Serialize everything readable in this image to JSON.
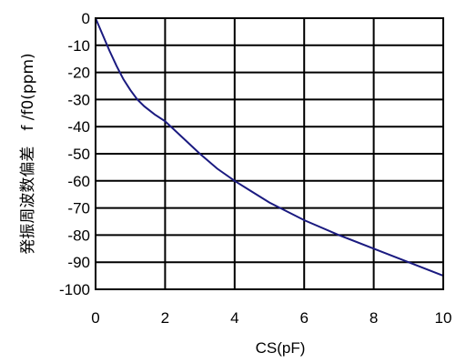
{
  "chart_data": {
    "type": "line",
    "xlabel": "CS(pF)",
    "ylabel": "発振周波数偏差　f /f0(ppm)",
    "xlim": [
      0,
      10
    ],
    "ylim": [
      -100,
      0
    ],
    "xticks": [
      0,
      2,
      4,
      6,
      8,
      10
    ],
    "yticks": [
      0,
      -10,
      -20,
      -30,
      -40,
      -50,
      -60,
      -70,
      -80,
      -90,
      -100
    ],
    "xtick_labels": [
      "0",
      "2",
      "4",
      "6",
      "8",
      "10"
    ],
    "ytick_labels": [
      "0",
      "-10",
      "-20",
      "-30",
      "-40",
      "-50",
      "-60",
      "-70",
      "-80",
      "-90",
      "-100"
    ],
    "grid": true,
    "line_color": "#1a1a80",
    "series": [
      {
        "x": [
          0,
          0.2,
          0.4,
          0.6,
          0.8,
          1.0,
          1.2,
          1.4,
          1.7,
          2.0,
          2.5,
          3.0,
          3.5,
          4.0,
          4.5,
          5.0,
          6.0,
          7.0,
          8.0,
          9.0,
          10.0
        ],
        "y": [
          0,
          -6,
          -12,
          -17.5,
          -22.5,
          -26.5,
          -30,
          -32.5,
          -35.5,
          -38,
          -44,
          -50,
          -55.5,
          -60,
          -64,
          -68,
          -74.5,
          -80,
          -85,
          -90,
          -95
        ]
      }
    ]
  }
}
